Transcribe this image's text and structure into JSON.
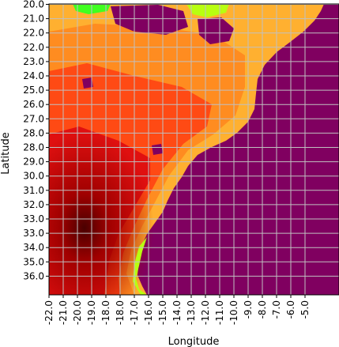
{
  "map": {
    "xlabel": "Longitude",
    "ylabel": "Latitude",
    "lat_ticks": [
      "20.0",
      "21.0",
      "22.0",
      "22.0",
      "23.0",
      "24.0",
      "25.0",
      "26.0",
      "27.0",
      "28.0",
      "28.0",
      "29.0",
      "30.0",
      "31.0",
      "32.0",
      "33.0",
      "33.0",
      "34.0",
      "35.0",
      "36.0"
    ],
    "lon_ticks": [
      "-22.0",
      "-21.0",
      "-20.0",
      "-19.0",
      "-18.0",
      "-18.0",
      "-17.0",
      "-16.0",
      "-15.0",
      "-14.0",
      "-13.0",
      "-12.0",
      "-11.0",
      "-10.0",
      "-9.0",
      "-8.0",
      "-7.0",
      "-6.0",
      "-5.0"
    ],
    "grid": true,
    "colors": {
      "sea": "#800060",
      "lowest": "#4a0000",
      "low": "#a00000",
      "mid_low": "#e01010",
      "mid": "#ff4a14",
      "mid_high": "#ff8c20",
      "high": "#ffb030",
      "highest": "#b8ff10",
      "extreme": "#40ff20",
      "grid": "#c0c0c0"
    }
  }
}
